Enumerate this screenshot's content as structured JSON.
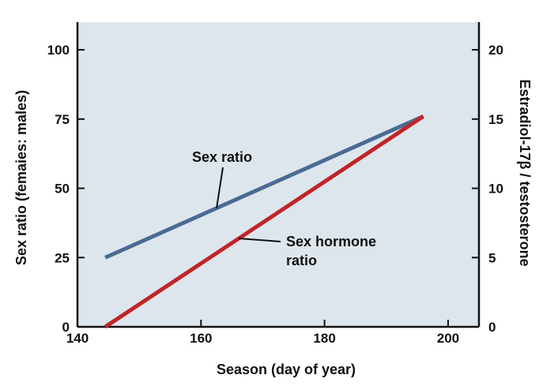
{
  "chart_data": {
    "type": "line",
    "xlabel": "Season (day of year)",
    "ylabel_left": "Sex ratio (femaies: males)",
    "ylabel_right": "Estradiol-17β / testosterone",
    "xlim": [
      140,
      205
    ],
    "ylim_left": [
      0,
      110
    ],
    "ylim_right": [
      0,
      22
    ],
    "x_ticks": [
      140,
      160,
      180,
      200
    ],
    "y_left_ticks": [
      0,
      25,
      50,
      75,
      100
    ],
    "y_right_ticks": [
      0,
      5,
      10,
      15,
      20
    ],
    "grid": false,
    "background_color": "#dde6ec",
    "series": [
      {
        "name": "Sex ratio",
        "axis": "left",
        "color": "#4a6b94",
        "x": [
          144.5,
          196
        ],
        "y": [
          25,
          76
        ]
      },
      {
        "name": "Sex hormone ratio",
        "axis": "right",
        "color": "#c02528",
        "x": [
          144.5,
          196
        ],
        "y": [
          0,
          15.2
        ]
      }
    ],
    "annotations": [
      {
        "text_lines": [
          "Sex ratio"
        ],
        "series": "Sex ratio"
      },
      {
        "text_lines": [
          "Sex hormone",
          "ratio"
        ],
        "series": "Sex hormone ratio"
      }
    ]
  }
}
